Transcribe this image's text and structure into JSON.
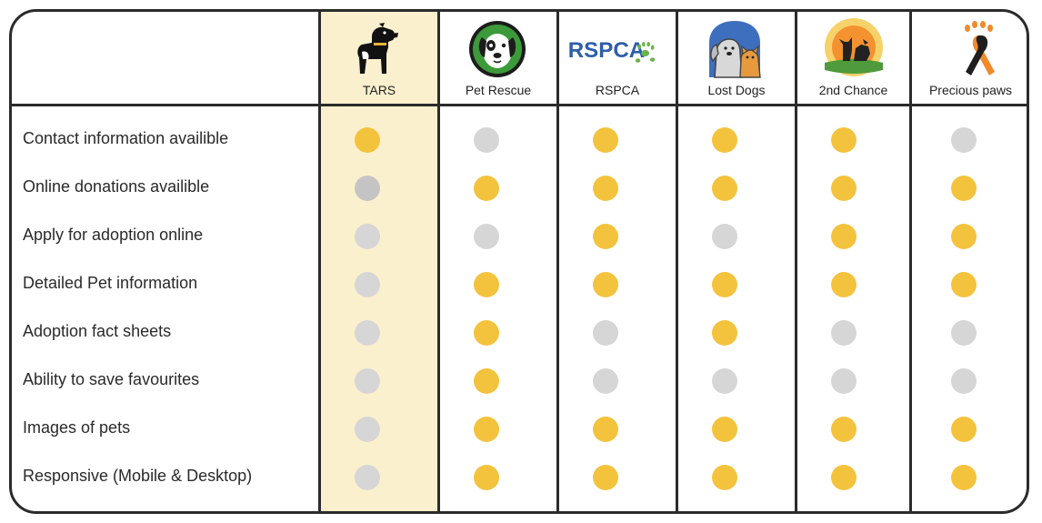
{
  "columns": [
    {
      "name": "TARS",
      "logo": "black-dog-icon",
      "highlight": true
    },
    {
      "name": "Pet Rescue",
      "logo": "dog-face-green-circle-icon"
    },
    {
      "name": "RSPCA",
      "logo": "rspca-wordmark-paw-icon"
    },
    {
      "name": "Lost Dogs",
      "logo": "dog-and-cat-icon"
    },
    {
      "name": "2nd Chance",
      "logo": "cat-dog-sunset-icon"
    },
    {
      "name": "Precious paws",
      "logo": "paw-ribbon-icon"
    }
  ],
  "logo_text": {
    "rspca": "RSPCA"
  },
  "rows": [
    {
      "label": "Contact information availible",
      "values": [
        true,
        false,
        true,
        true,
        true,
        false
      ]
    },
    {
      "label": "Online donations availible",
      "values": [
        false,
        true,
        true,
        true,
        true,
        true
      ]
    },
    {
      "label": "Apply for adoption online",
      "values": [
        false,
        false,
        true,
        false,
        true,
        true
      ]
    },
    {
      "label": "Detailed Pet information",
      "values": [
        false,
        true,
        true,
        true,
        true,
        true
      ]
    },
    {
      "label": "Adoption fact sheets",
      "values": [
        false,
        true,
        false,
        true,
        false,
        false
      ]
    },
    {
      "label": "Ability to save favourites",
      "values": [
        false,
        true,
        false,
        false,
        false,
        false
      ]
    },
    {
      "label": "Images of pets",
      "values": [
        false,
        true,
        true,
        true,
        true,
        true
      ]
    },
    {
      "label": "Responsive (Mobile & Desktop)",
      "values": [
        false,
        true,
        true,
        true,
        true,
        true
      ]
    }
  ],
  "colors": {
    "available": "#f4c33d",
    "unavailable": "#d6d6d6",
    "highlight": "#fbf0cd",
    "border": "#2b2b2b"
  }
}
